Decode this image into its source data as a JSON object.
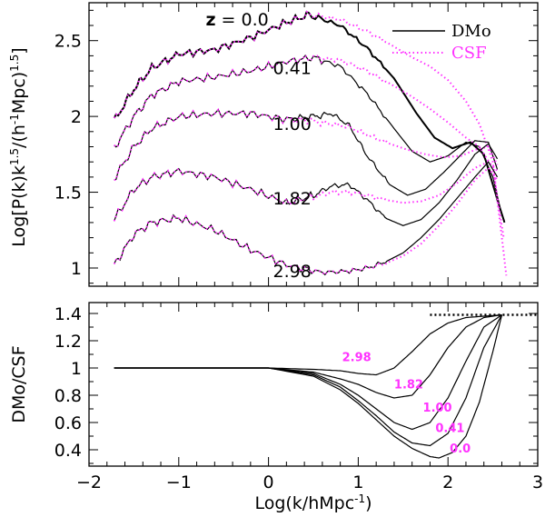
{
  "chart_data": [
    {
      "type": "line",
      "panel": "top",
      "ylabel": "Log[P(k)k^1.5/(h^-1 Mpc)^1.5]",
      "ylabel_parts": {
        "pre": "Log[P(k)k",
        "exp1": "1.5",
        "mid": "/(h",
        "exp2": "-1",
        "mid2": "Mpc)",
        "exp3": "1.5",
        "post": "]"
      },
      "xlim": [
        -2,
        3
      ],
      "ylim": [
        0.88,
        2.75
      ],
      "yticks": [
        "1",
        "1.5",
        "2",
        "2.5"
      ],
      "ytick_values": [
        1,
        1.5,
        2,
        2.5
      ],
      "legend": [
        {
          "name": "DMo",
          "color": "#000000",
          "style": "solid"
        },
        {
          "name": "CSF",
          "color": "#ff33ff",
          "style": "dotted"
        }
      ],
      "annotations": [
        {
          "prefix": "z",
          "text": " = 0.0",
          "x": -0.7,
          "y": 2.6
        },
        {
          "text": "0.41",
          "x": 0.05,
          "y": 2.28
        },
        {
          "text": "1.00",
          "x": 0.05,
          "y": 1.91
        },
        {
          "text": "1.82",
          "x": 0.05,
          "y": 1.42
        },
        {
          "text": "2.98",
          "x": 0.05,
          "y": 0.94
        }
      ],
      "series": [
        {
          "name": "DMo z=0.0",
          "x": [
            -1.72,
            -1.5,
            -1.3,
            -1.0,
            -0.6,
            -0.2,
            0.2,
            0.45,
            0.8,
            1.1,
            1.4,
            1.65,
            1.85,
            2.05,
            2.25,
            2.4,
            2.55,
            2.63
          ],
          "y": [
            1.97,
            2.18,
            2.32,
            2.41,
            2.44,
            2.52,
            2.62,
            2.67,
            2.6,
            2.45,
            2.25,
            2.02,
            1.86,
            1.79,
            1.83,
            1.75,
            1.45,
            1.3
          ]
        },
        {
          "name": "CSF z=0.0",
          "x": [
            -1.72,
            -1.5,
            -1.3,
            -1.0,
            -0.6,
            -0.2,
            0.2,
            0.45,
            0.8,
            1.1,
            1.4,
            1.6,
            1.8,
            2.0,
            2.2,
            2.35,
            2.5,
            2.6,
            2.65
          ],
          "y": [
            1.97,
            2.18,
            2.32,
            2.41,
            2.44,
            2.52,
            2.62,
            2.67,
            2.64,
            2.56,
            2.46,
            2.39,
            2.33,
            2.24,
            2.1,
            1.95,
            1.7,
            1.2,
            0.95
          ]
        },
        {
          "name": "DMo z=0.41",
          "x": [
            -1.72,
            -1.5,
            -1.3,
            -1.0,
            -0.6,
            -0.2,
            0.2,
            0.5,
            0.8,
            1.1,
            1.4,
            1.6,
            1.8,
            2.0,
            2.2,
            2.35,
            2.5,
            2.6
          ],
          "y": [
            1.79,
            2.0,
            2.14,
            2.23,
            2.26,
            2.3,
            2.36,
            2.39,
            2.33,
            2.15,
            1.92,
            1.77,
            1.7,
            1.74,
            1.83,
            1.8,
            1.6,
            1.35
          ]
        },
        {
          "name": "CSF z=0.41",
          "x": [
            -1.72,
            -1.5,
            -1.3,
            -1.0,
            -0.6,
            -0.2,
            0.2,
            0.5,
            0.8,
            1.1,
            1.4,
            1.6,
            1.8,
            2.0,
            2.2,
            2.35,
            2.5,
            2.62
          ],
          "y": [
            1.79,
            2.0,
            2.14,
            2.23,
            2.26,
            2.3,
            2.36,
            2.39,
            2.37,
            2.3,
            2.2,
            2.13,
            2.05,
            1.96,
            1.86,
            1.8,
            1.66,
            1.2
          ]
        },
        {
          "name": "DMo z=1.00",
          "x": [
            -1.72,
            -1.5,
            -1.3,
            -1.0,
            -0.6,
            -0.2,
            0.2,
            0.5,
            0.7,
            0.9,
            1.1,
            1.35,
            1.55,
            1.75,
            1.95,
            2.15,
            2.3,
            2.45,
            2.55
          ],
          "y": [
            1.59,
            1.8,
            1.92,
            2.0,
            2.02,
            2.02,
            1.98,
            2.0,
            2.02,
            1.94,
            1.74,
            1.55,
            1.48,
            1.52,
            1.63,
            1.75,
            1.84,
            1.83,
            1.65
          ]
        },
        {
          "name": "CSF z=1.00",
          "x": [
            -1.72,
            -1.5,
            -1.3,
            -1.0,
            -0.6,
            -0.2,
            0.2,
            0.5,
            0.7,
            0.9,
            1.1,
            1.35,
            1.55,
            1.75,
            1.95,
            2.15,
            2.3,
            2.45,
            2.55
          ],
          "y": [
            1.59,
            1.8,
            1.92,
            2.0,
            2.02,
            2.02,
            1.98,
            1.97,
            1.95,
            1.93,
            1.88,
            1.82,
            1.78,
            1.75,
            1.73,
            1.74,
            1.78,
            1.8,
            1.68
          ]
        },
        {
          "name": "DMo z=1.82",
          "x": [
            -1.72,
            -1.5,
            -1.3,
            -1.0,
            -0.6,
            -0.2,
            0.2,
            0.5,
            0.7,
            0.9,
            1.1,
            1.3,
            1.5,
            1.7,
            1.9,
            2.1,
            2.3,
            2.45,
            2.55
          ],
          "y": [
            1.32,
            1.52,
            1.6,
            1.64,
            1.6,
            1.52,
            1.43,
            1.48,
            1.54,
            1.55,
            1.45,
            1.33,
            1.28,
            1.32,
            1.43,
            1.58,
            1.75,
            1.82,
            1.72
          ]
        },
        {
          "name": "CSF z=1.82",
          "x": [
            -1.72,
            -1.5,
            -1.3,
            -1.0,
            -0.6,
            -0.2,
            0.2,
            0.5,
            0.7,
            0.9,
            1.1,
            1.3,
            1.5,
            1.7,
            1.9,
            2.1,
            2.3,
            2.45,
            2.55
          ],
          "y": [
            1.32,
            1.52,
            1.6,
            1.64,
            1.6,
            1.52,
            1.43,
            1.47,
            1.5,
            1.5,
            1.48,
            1.45,
            1.43,
            1.44,
            1.48,
            1.56,
            1.66,
            1.7,
            1.64
          ]
        },
        {
          "name": "DMo z=2.98",
          "x": [
            -1.72,
            -1.5,
            -1.3,
            -1.0,
            -0.6,
            -0.2,
            0.2,
            0.6,
            0.9,
            1.1,
            1.3,
            1.5,
            1.7,
            1.9,
            2.1,
            2.3,
            2.45,
            2.55
          ],
          "y": [
            1.02,
            1.22,
            1.3,
            1.33,
            1.25,
            1.12,
            1.02,
            0.97,
            0.98,
            1.0,
            1.04,
            1.1,
            1.2,
            1.32,
            1.46,
            1.6,
            1.7,
            1.6
          ]
        },
        {
          "name": "CSF z=2.98",
          "x": [
            -1.72,
            -1.5,
            -1.3,
            -1.0,
            -0.6,
            -0.2,
            0.2,
            0.6,
            0.9,
            1.1,
            1.3,
            1.5,
            1.7,
            1.9,
            2.1,
            2.3,
            2.45,
            2.55
          ],
          "y": [
            1.02,
            1.22,
            1.3,
            1.33,
            1.25,
            1.12,
            1.02,
            0.97,
            0.98,
            1.0,
            1.03,
            1.08,
            1.16,
            1.28,
            1.42,
            1.58,
            1.66,
            1.58
          ]
        }
      ]
    },
    {
      "type": "line",
      "panel": "bottom",
      "xlabel": "Log(k/hMpc^-1)",
      "xlabel_parts": {
        "pre": "Log(k/hMpc",
        "exp": "-1",
        "post": ")"
      },
      "ylabel": "DMo/CSF",
      "xlim": [
        -2,
        3
      ],
      "ylim": [
        0.28,
        1.48
      ],
      "xticks": [
        "−2",
        "−1",
        "0",
        "1",
        "2",
        "3"
      ],
      "xtick_values": [
        -2,
        -1,
        0,
        1,
        2,
        3
      ],
      "yticks": [
        "0.4",
        "0.6",
        "0.8",
        "1",
        "1.2",
        "1.4"
      ],
      "ytick_values": [
        0.4,
        0.6,
        0.8,
        1.0,
        1.2,
        1.4
      ],
      "reference_line": {
        "y": 1.39,
        "x_from": 1.8,
        "x_to": 3.0,
        "style": "dotted"
      },
      "annotations": [
        {
          "text": "2.98",
          "x": 0.82,
          "y": 1.05
        },
        {
          "text": "1.82",
          "x": 1.4,
          "y": 0.85
        },
        {
          "text": "1.00",
          "x": 1.72,
          "y": 0.68
        },
        {
          "text": "0.41",
          "x": 1.86,
          "y": 0.53
        },
        {
          "text": "0.0",
          "x": 2.02,
          "y": 0.38
        }
      ],
      "series": [
        {
          "name": "z=2.98",
          "x": [
            -1.72,
            -1.0,
            0.0,
            0.5,
            0.8,
            1.0,
            1.2,
            1.4,
            1.6,
            1.8,
            2.0,
            2.2,
            2.4,
            2.6
          ],
          "y": [
            1.0,
            1.0,
            1.0,
            0.99,
            0.98,
            0.96,
            0.95,
            1.0,
            1.12,
            1.25,
            1.33,
            1.37,
            1.38,
            1.39
          ]
        },
        {
          "name": "z=1.82",
          "x": [
            -1.72,
            -1.0,
            0.0,
            0.5,
            0.8,
            1.0,
            1.2,
            1.4,
            1.6,
            1.8,
            2.0,
            2.2,
            2.4,
            2.6
          ],
          "y": [
            1.0,
            1.0,
            1.0,
            0.97,
            0.92,
            0.88,
            0.82,
            0.78,
            0.8,
            0.95,
            1.15,
            1.3,
            1.37,
            1.39
          ]
        },
        {
          "name": "z=1.00",
          "x": [
            -1.72,
            -1.0,
            0.0,
            0.5,
            0.8,
            1.0,
            1.2,
            1.4,
            1.6,
            1.8,
            2.0,
            2.2,
            2.4,
            2.6
          ],
          "y": [
            1.0,
            1.0,
            1.0,
            0.96,
            0.88,
            0.8,
            0.7,
            0.6,
            0.55,
            0.6,
            0.78,
            1.05,
            1.3,
            1.39
          ]
        },
        {
          "name": "z=0.41",
          "x": [
            -1.72,
            -1.0,
            0.0,
            0.5,
            0.8,
            1.0,
            1.2,
            1.4,
            1.6,
            1.8,
            2.0,
            2.2,
            2.4,
            2.6
          ],
          "y": [
            1.0,
            1.0,
            1.0,
            0.95,
            0.86,
            0.76,
            0.65,
            0.53,
            0.45,
            0.43,
            0.52,
            0.78,
            1.15,
            1.39
          ]
        },
        {
          "name": "z=0.0",
          "x": [
            -1.72,
            -1.0,
            0.0,
            0.5,
            0.8,
            1.0,
            1.2,
            1.4,
            1.6,
            1.8,
            1.9,
            2.05,
            2.2,
            2.35,
            2.5,
            2.6
          ],
          "y": [
            1.0,
            1.0,
            1.0,
            0.94,
            0.84,
            0.74,
            0.62,
            0.5,
            0.41,
            0.35,
            0.34,
            0.38,
            0.5,
            0.75,
            1.12,
            1.39
          ]
        }
      ]
    }
  ],
  "colors": {
    "dmo": "#000000",
    "csf": "#ff33ff",
    "label_magenta": "#ff33ff"
  }
}
